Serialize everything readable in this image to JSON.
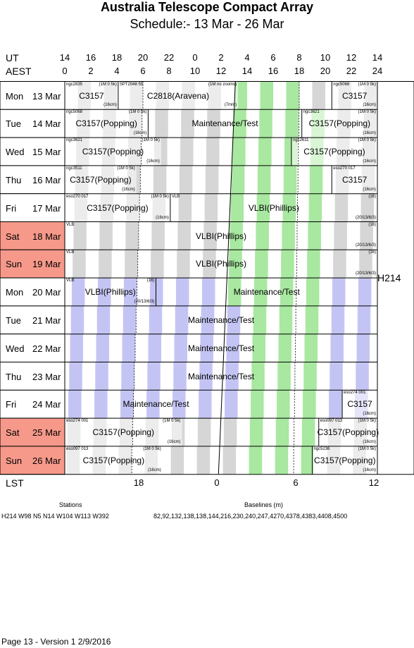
{
  "title": "Australia Telescope Compact Array",
  "subtitle": "Schedule:- 13 Mar - 26 Mar",
  "axis": {
    "ut_label": "UT",
    "aest_label": "AEST",
    "lst_label": "LST",
    "ut_ticks": [
      "14",
      "16",
      "18",
      "20",
      "22",
      "0",
      "2",
      "4",
      "6",
      "8",
      "10",
      "12",
      "14"
    ],
    "aest_ticks": [
      "0",
      "2",
      "4",
      "6",
      "8",
      "10",
      "12",
      "14",
      "16",
      "18",
      "20",
      "22",
      "24"
    ],
    "lst_ticks": [
      "18",
      "0",
      "6",
      "12"
    ]
  },
  "config": "H214",
  "days": [
    {
      "dow": "Mon",
      "date": "13 Mar",
      "weekend": false
    },
    {
      "dow": "Tue",
      "date": "14 Mar",
      "weekend": false
    },
    {
      "dow": "Wed",
      "date": "15 Mar",
      "weekend": false
    },
    {
      "dow": "Thu",
      "date": "16 Mar",
      "weekend": false
    },
    {
      "dow": "Fri",
      "date": "17 Mar",
      "weekend": false
    },
    {
      "dow": "Sat",
      "date": "18 Mar",
      "weekend": true
    },
    {
      "dow": "Sun",
      "date": "19 Mar",
      "weekend": true
    },
    {
      "dow": "Mon",
      "date": "20 Mar",
      "weekend": false
    },
    {
      "dow": "Tue",
      "date": "21 Mar",
      "weekend": false
    },
    {
      "dow": "Wed",
      "date": "22 Mar",
      "weekend": false
    },
    {
      "dow": "Thu",
      "date": "23 Mar",
      "weekend": false
    },
    {
      "dow": "Fri",
      "date": "24 Mar",
      "weekend": false
    },
    {
      "dow": "Sat",
      "date": "25 Mar",
      "weekend": true
    },
    {
      "dow": "Sun",
      "date": "26 Mar",
      "weekend": true
    }
  ],
  "blocks": [
    {
      "day": 0,
      "start": 0,
      "end": 4.1,
      "label": "C3157",
      "source": "ngc2835",
      "freq": "(1M 0 5k)",
      "band": "(16cm)"
    },
    {
      "day": 0,
      "start": 4.1,
      "end": 13.3,
      "label": "C2818(Aravena)",
      "source": "SPT2048 55",
      "freq": "(1M no zooms)",
      "band": "(7mm)"
    },
    {
      "day": 0,
      "start": 20.5,
      "end": 24,
      "label": "C3157",
      "source": "ngc5068",
      "freq": "(1M 0 5k)",
      "band": "(16cm)"
    },
    {
      "day": 1,
      "start": 0,
      "end": 6.4,
      "label": "C3157(Popping)",
      "source": "ngc5068",
      "freq": "(1M 0 5k)",
      "band": "(16cm)"
    },
    {
      "day": 1,
      "start": 6.4,
      "end": 18.2,
      "label": "Maintenance/Test",
      "source": "",
      "freq": "",
      "band": ""
    },
    {
      "day": 1,
      "start": 18.2,
      "end": 24,
      "label": "C3157(Popping)",
      "source": "ngc3621",
      "freq": "(1M 0 5k)",
      "band": "(16cm)"
    },
    {
      "day": 2,
      "start": 0,
      "end": 7.4,
      "label": "C3157(Popping)",
      "source": "ngc3621",
      "freq": "(1M 0 5k)",
      "band": "(16cm)"
    },
    {
      "day": 2,
      "start": 17.4,
      "end": 24,
      "label": "C3157(Popping)",
      "source": "ngc2611",
      "freq": "(1M 0 5k)",
      "band": "(16cm)"
    },
    {
      "day": 3,
      "start": 0,
      "end": 5.5,
      "label": "C3157(Popping)",
      "source": "ngc3511",
      "freq": "(1M 0 5k)",
      "band": "(16cm)"
    },
    {
      "day": 3,
      "start": 20.5,
      "end": 24,
      "label": "C3157",
      "source": "eso270 017",
      "freq": "",
      "band": "(16cm)"
    },
    {
      "day": 4,
      "start": 0,
      "end": 8.1,
      "label": "C3157(Popping)",
      "source": "eso270 017",
      "freq": "(1M 0 5k)",
      "band": "(16cm)"
    },
    {
      "day": 4,
      "start": 8.1,
      "end": 24,
      "label": "VLBI(Phillips)",
      "source": "VLB",
      "freq": "(16)",
      "band": "(20/13/6/3)"
    },
    {
      "day": 5,
      "start": 0,
      "end": 24,
      "label": "VLBI(Phillips)",
      "source": "VLB",
      "freq": "(16)",
      "band": "(20/13/6/3)"
    },
    {
      "day": 6,
      "start": 0,
      "end": 24,
      "label": "VLBI(Phillips)",
      "source": "VLB",
      "freq": "(16)",
      "band": "(20/13/6/3)"
    },
    {
      "day": 7,
      "start": 0,
      "end": 7.0,
      "label": "VLBI(Phillips)",
      "source": "VLB",
      "freq": "(16)",
      "band": "(20/13/6/3)"
    },
    {
      "day": 7,
      "start": 7.0,
      "end": 24,
      "label": "Maintenance/Test",
      "source": "",
      "freq": "",
      "band": ""
    },
    {
      "day": 8,
      "start": 0,
      "end": 24,
      "label": "Maintenance/Test",
      "source": "",
      "freq": "",
      "band": ""
    },
    {
      "day": 9,
      "start": 0,
      "end": 24,
      "label": "Maintenance/Test",
      "source": "",
      "freq": "",
      "band": ""
    },
    {
      "day": 10,
      "start": 0,
      "end": 24,
      "label": "Maintenance/Test",
      "source": "",
      "freq": "",
      "band": ""
    },
    {
      "day": 11,
      "start": 0,
      "end": 14.0,
      "label": "Maintenance/Test",
      "source": "",
      "freq": "",
      "band": ""
    },
    {
      "day": 11,
      "start": 21.3,
      "end": 24,
      "label": "C3157",
      "source": "eso274 001",
      "freq": "",
      "band": "(16cm)"
    },
    {
      "day": 12,
      "start": 0,
      "end": 9.0,
      "label": "C3157(Popping)",
      "source": "eso274 001",
      "freq": "(1M 0 5k)",
      "band": "(16cm)"
    },
    {
      "day": 12,
      "start": 19.5,
      "end": 24,
      "label": "C3157(Popping)",
      "source": "eso097 013",
      "freq": "(1M 0 5k)",
      "band": "(16cm)"
    },
    {
      "day": 13,
      "start": 0,
      "end": 7.5,
      "label": "C3157(Popping)",
      "source": "eso097 013",
      "freq": "(1M 0 5k)",
      "band": "(16cm)"
    },
    {
      "day": 13,
      "start": 19.0,
      "end": 24,
      "label": "C3157(Popping)",
      "source": "ngc5236",
      "freq": "(1M 0 5k)",
      "band": "(16cm)"
    }
  ],
  "vertical_block": {
    "day": 2,
    "label": "C1929"
  },
  "stations_label": "Stations",
  "stations_value": "H214   W98 N5 N14 W104 W113 W392",
  "baselines_label": "Baselines (m)",
  "baselines_value": "82,92,132,138,138,144,216,230,240,247,4270,4378,4383,4408,4500",
  "footer": "Page 13 - Version 1   2/9/2016",
  "colors": {
    "weekend": "#f6998a",
    "gray": "#d6d6d6",
    "green": "#a8e8a0",
    "blue": "#c4c4f4"
  }
}
